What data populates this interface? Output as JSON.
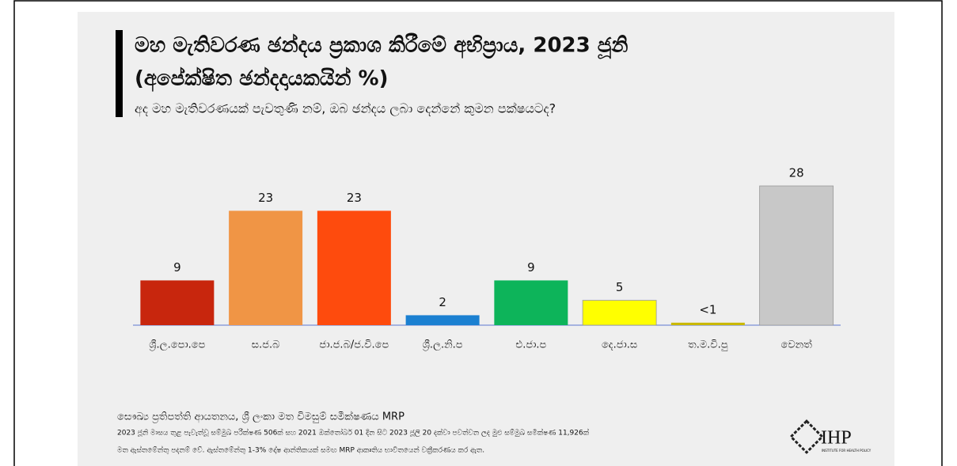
{
  "chart_data": {
    "type": "bar",
    "title": [
      "මහ මැතිවරණ ඡන්දය ප්‍රකාශ කිරීමේ අභිප්‍රාය, 2023 ජූනි",
      "(අපේක්ෂිත ඡන්දදායකයින් %)"
    ],
    "subtitle": "අද මහ මැතිවරණයක් පැවතුණි නම්, ඔබ ඡන්දය ලබා දෙන්නේ කුමන පක්ෂයටද?",
    "categories": [
      "ශ්‍රී.ල.පො.පෙ",
      "ස.ජ.බ",
      "ජා.ජ.බ/ජ.වි.පෙ",
      "ශ්‍රී.ල.නි.ප",
      "එ.ජා.ප",
      "දෙ.ජා.ස",
      "ත.ම.වි.පු",
      "වෙනත්"
    ],
    "values": [
      9,
      23,
      23,
      2,
      9,
      5,
      0.5,
      28
    ],
    "value_labels": [
      "9",
      "23",
      "23",
      "2",
      "9",
      "5",
      "<1",
      "28"
    ],
    "colors": [
      "#c8260d",
      "#f09545",
      "#fe4b0d",
      "#1b80d1",
      "#0db45a",
      "#ffff00",
      "#c9b800",
      "#c8c8c8"
    ],
    "source": "සෞඛ්‍ය ප්‍රතිපත්ති ආයතනය, ශ්‍රී ලංකා මත විමසුම් සමීක්ෂණය MRP",
    "notes": [
      "2023 ජූනි මාසය තුළ පැවැත්වූ සම්මුඛ පරීක්ෂණ 506ක් සහ 2021 ඔක්තෝබර් 01 දින සිට 2023 ජූලි 20 දක්වා පවත්වන ලද මුළු සම්මුඛ සමීක්ෂණ 11,926ක්",
      "මත ඇස්තමේන්තු පදනම් වේ. ඇස්තමේන්තු 1-3% දෝෂ ආන්තිකයක් සමඟ MRP ආකෘතිය භාවිතයෙන් වක්‍රීකරණය කර ඇත."
    ],
    "logo": {
      "text": "IHP",
      "subtext": "INSTITUTE FOR HEALTH POLICY"
    }
  }
}
